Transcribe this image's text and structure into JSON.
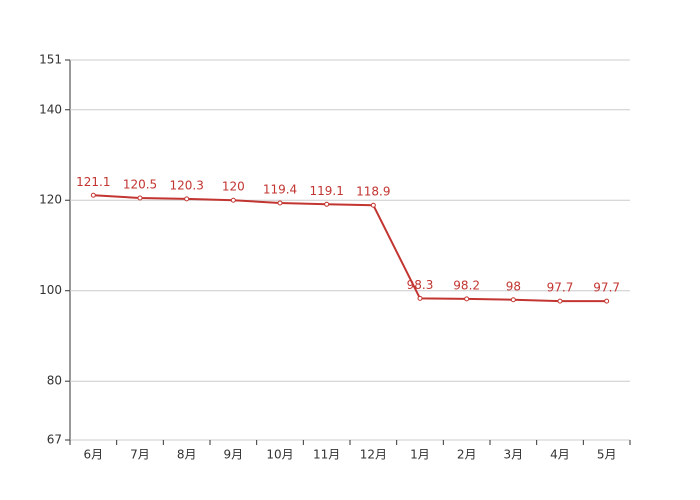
{
  "chart_data": {
    "type": "line",
    "categories": [
      "6月",
      "7月",
      "8月",
      "9月",
      "10月",
      "11月",
      "12月",
      "1月",
      "2月",
      "3月",
      "4月",
      "5月"
    ],
    "values": [
      121.1,
      120.5,
      120.3,
      120,
      119.4,
      119.1,
      118.9,
      98.3,
      98.2,
      98,
      97.7,
      97.7
    ],
    "color": "#c23531",
    "ylim": [
      67,
      151
    ],
    "yticks": [
      67,
      80,
      100,
      120,
      140,
      151
    ],
    "grid": true
  }
}
